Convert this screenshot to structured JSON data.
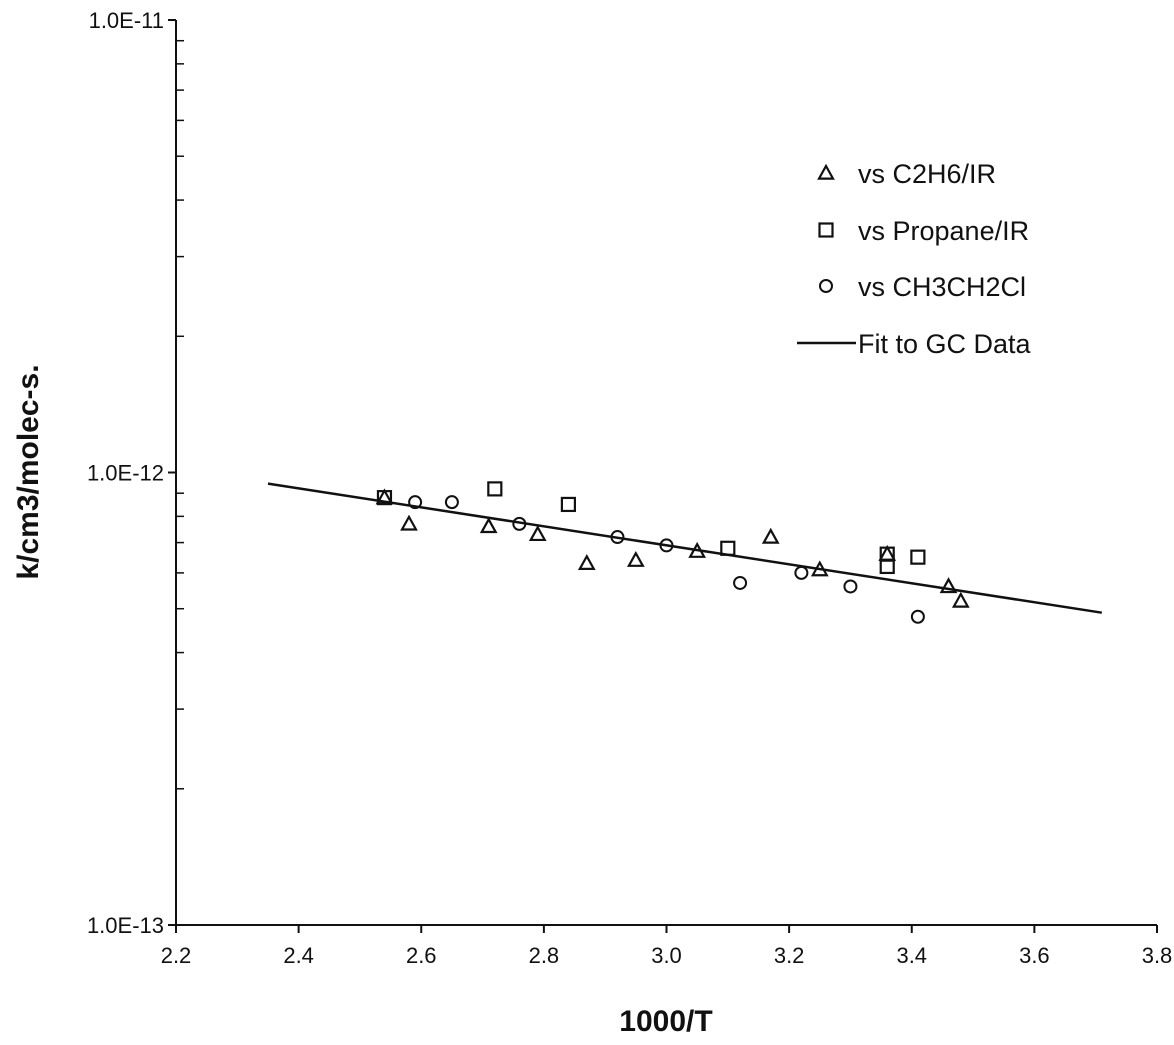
{
  "chart_data": {
    "type": "scatter",
    "title": "",
    "xlabel": "1000/T",
    "ylabel": "k/cm3/molec-s.",
    "xlim": [
      2.2,
      3.8
    ],
    "ylim": [
      1e-13,
      1e-11
    ],
    "y_scale": "log",
    "grid": false,
    "legend_position": "top-right",
    "x_ticks": [
      "2.2",
      "2.4",
      "2.6",
      "2.8",
      "3.0",
      "3.2",
      "3.4",
      "3.6",
      "3.8"
    ],
    "y_ticks": [
      "1.0E-13",
      "1.0E-12",
      "1.0E-11"
    ],
    "series": [
      {
        "name": "vs C2H6/IR",
        "marker": "triangle",
        "points": [
          [
            2.54,
            8.8e-13
          ],
          [
            2.58,
            7.7e-13
          ],
          [
            2.71,
            7.6e-13
          ],
          [
            2.79,
            7.3e-13
          ],
          [
            2.87,
            6.3e-13
          ],
          [
            2.95,
            6.4e-13
          ],
          [
            3.05,
            6.7e-13
          ],
          [
            3.17,
            7.2e-13
          ],
          [
            3.25,
            6.1e-13
          ],
          [
            3.36,
            6.6e-13
          ],
          [
            3.46,
            5.6e-13
          ],
          [
            3.48,
            5.2e-13
          ]
        ]
      },
      {
        "name": "vs Propane/IR",
        "marker": "square",
        "points": [
          [
            2.54,
            8.8e-13
          ],
          [
            2.72,
            9.2e-13
          ],
          [
            2.84,
            8.5e-13
          ],
          [
            3.1,
            6.8e-13
          ],
          [
            3.36,
            6.6e-13
          ],
          [
            3.36,
            6.2e-13
          ],
          [
            3.41,
            6.5e-13
          ]
        ]
      },
      {
        "name": "vs CH3CH2Cl",
        "marker": "circle",
        "points": [
          [
            2.59,
            8.6e-13
          ],
          [
            2.65,
            8.6e-13
          ],
          [
            2.76,
            7.7e-13
          ],
          [
            2.92,
            7.2e-13
          ],
          [
            3.0,
            6.9e-13
          ],
          [
            3.12,
            5.7e-13
          ],
          [
            3.22,
            6e-13
          ],
          [
            3.3,
            5.6e-13
          ],
          [
            3.41,
            4.8e-13
          ]
        ]
      },
      {
        "name": "Fit to GC Data",
        "marker": "line",
        "points": [
          [
            2.35,
            9.45e-13
          ],
          [
            3.71,
            4.9e-13
          ]
        ]
      }
    ]
  }
}
